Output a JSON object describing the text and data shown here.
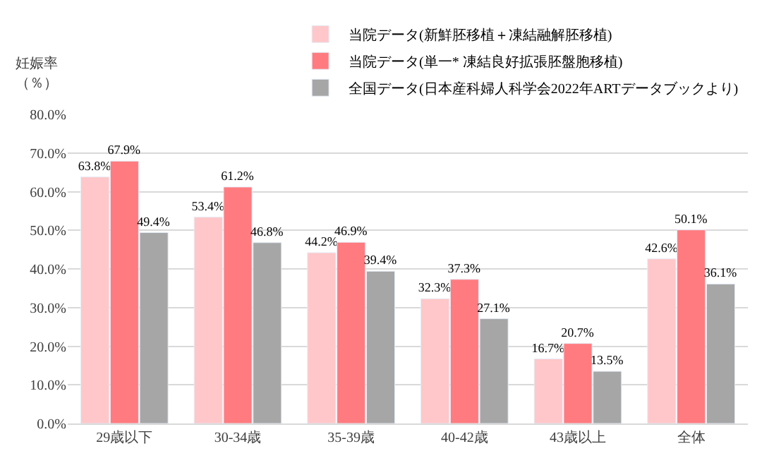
{
  "chart_data": {
    "type": "bar",
    "ylabel": "妊娠率",
    "annotations": [
      "（％）"
    ],
    "categories": [
      "29歳以下",
      "30-34歳",
      "35-39歳",
      "40-42歳",
      "43歳以上",
      "全体"
    ],
    "series": [
      {
        "name": "当院データ(新鮮胚移植＋凍結融解胚移植)",
        "color": "#ffc7c9",
        "values": [
          63.8,
          53.4,
          44.2,
          32.3,
          16.7,
          42.6
        ],
        "value_labels": [
          "63.8%",
          "53.4%",
          "44.2%",
          "32.3%",
          "16.7%",
          "42.6%"
        ]
      },
      {
        "name": "当院データ(単一* 凍結良好拡張胚盤胞移植)",
        "color": "#ff7b7f",
        "values": [
          67.9,
          61.2,
          46.9,
          37.3,
          20.7,
          50.1
        ],
        "value_labels": [
          "67.9%",
          "61.2%",
          "46.9%",
          "37.3%",
          "20.7%",
          "50.1%"
        ]
      },
      {
        "name": "全国データ(日本産科婦人科学会2022年ARTデータブックより)",
        "color": "#a6a6a6",
        "values": [
          49.4,
          46.8,
          39.4,
          27.1,
          13.5,
          36.1
        ],
        "value_labels": [
          "49.4%",
          "46.8%",
          "39.4%",
          "27.1%",
          "13.5%",
          "36.1%"
        ]
      }
    ],
    "ylim": [
      0,
      80
    ],
    "yticks": [
      {
        "value": 0,
        "label": "0.0%"
      },
      {
        "value": 10,
        "label": "10.0%"
      },
      {
        "value": 20,
        "label": "20.0%"
      },
      {
        "value": 30,
        "label": "30.0%"
      },
      {
        "value": 40,
        "label": "40.0%"
      },
      {
        "value": 50,
        "label": "50.0%"
      },
      {
        "value": 60,
        "label": "60.0%"
      },
      {
        "value": 70,
        "label": "70.0%"
      },
      {
        "value": 80,
        "label": "80.0%"
      }
    ],
    "grid": "y",
    "legend": "top"
  }
}
